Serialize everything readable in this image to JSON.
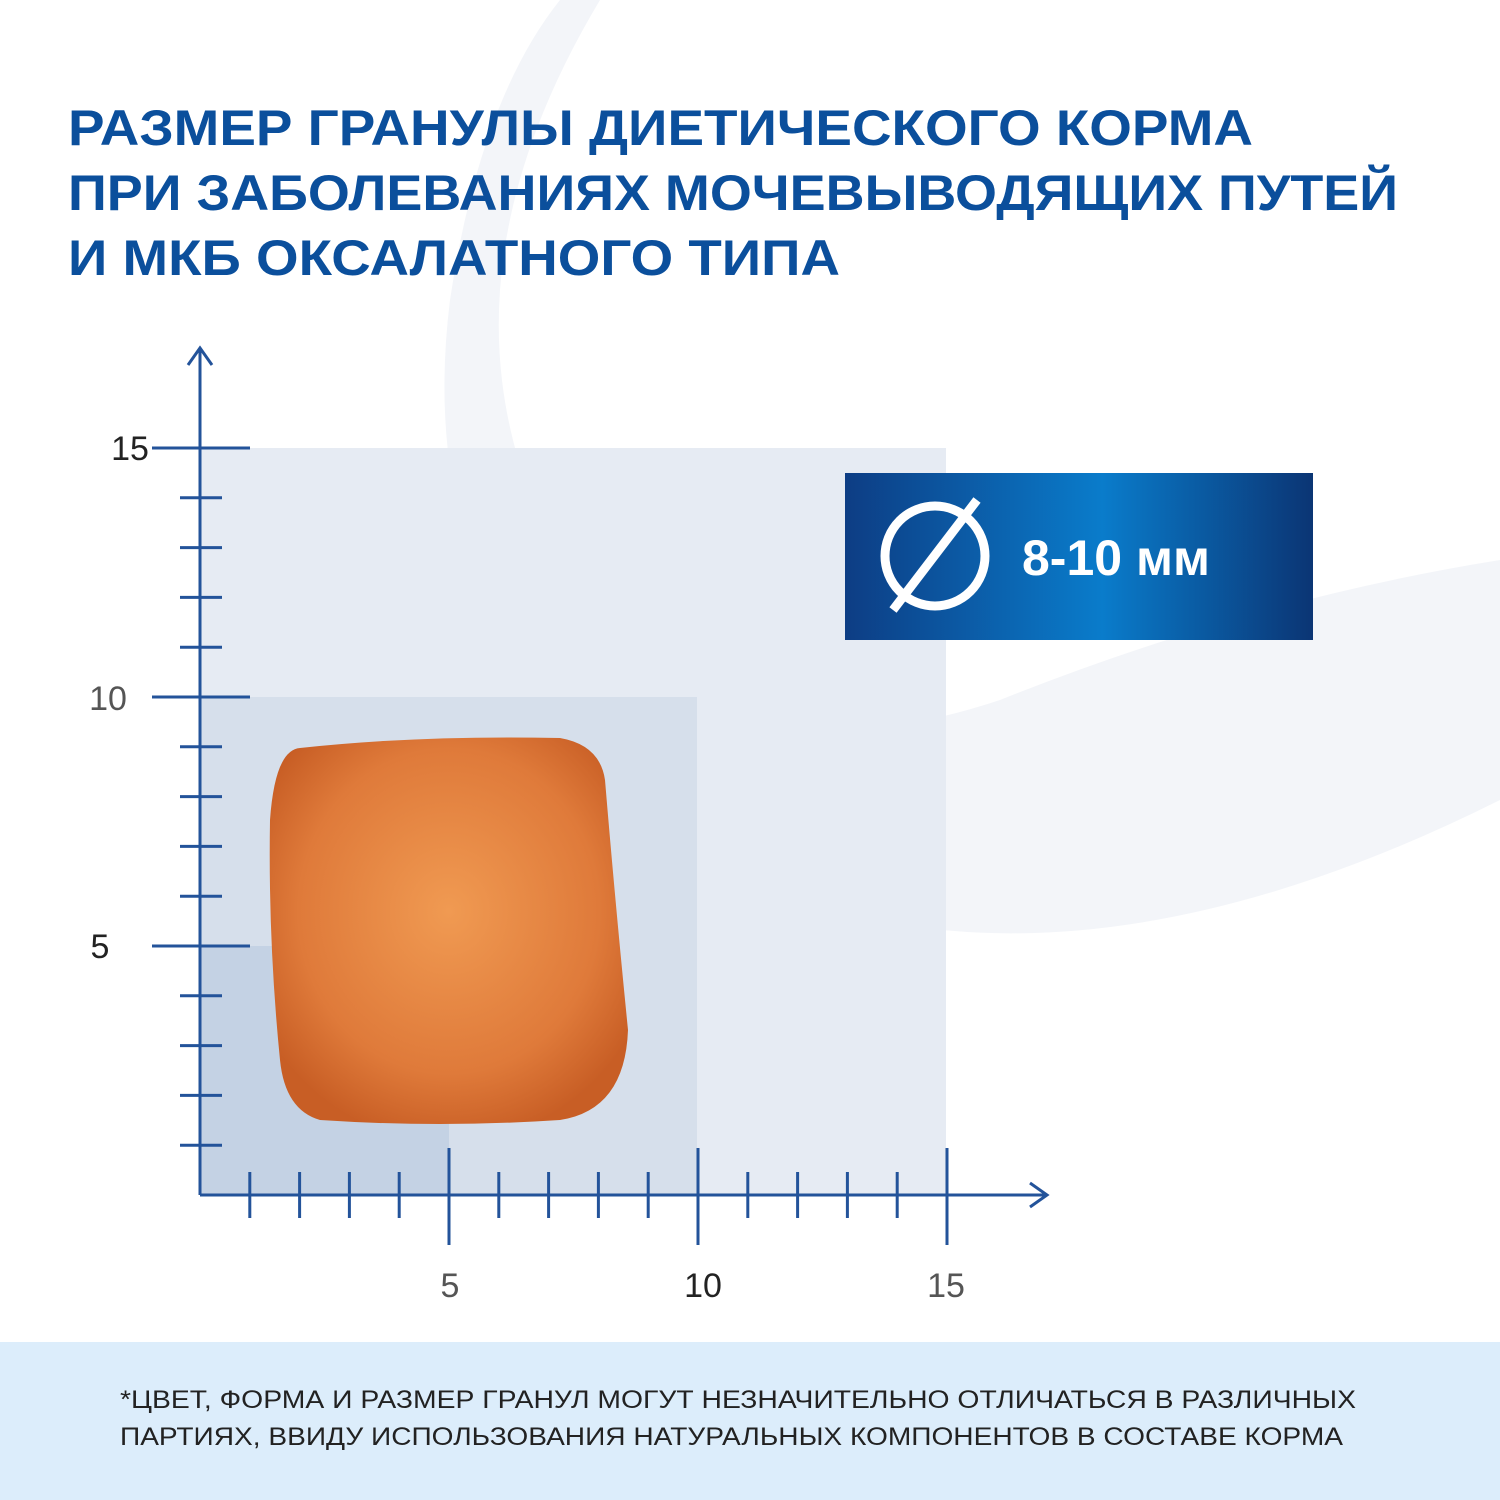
{
  "title": [
    "РАЗМЕР ГРАНУЛЫ ДИЕТИЧЕСКОГО КОРМА",
    "ПРИ ЗАБОЛЕВАНИЯХ МОЧЕВЫВОДЯЩИХ ПУТЕЙ",
    "И МКБ ОКСАЛАТНОГО ТИПА"
  ],
  "scale": {
    "y_labels": [
      "15",
      "10",
      "5"
    ],
    "x_labels": [
      "5",
      "10",
      "15"
    ]
  },
  "badge": "8-10 мм",
  "footnote": [
    "*ЦВЕТ, ФОРМА И РАЗМЕР ГРАНУЛ МОГУТ НЕЗНАЧИТЕЛЬНО ОТЛИЧАТЬСЯ  В РАЗЛИЧНЫХ",
    "ПАРТИЯХ, ВВИДУ ИСПОЛЬЗОВАНИЯ НАТУРАЛЬНЫХ КОМПОНЕНТОВ В СОСТАВЕ  КОРМА"
  ]
}
